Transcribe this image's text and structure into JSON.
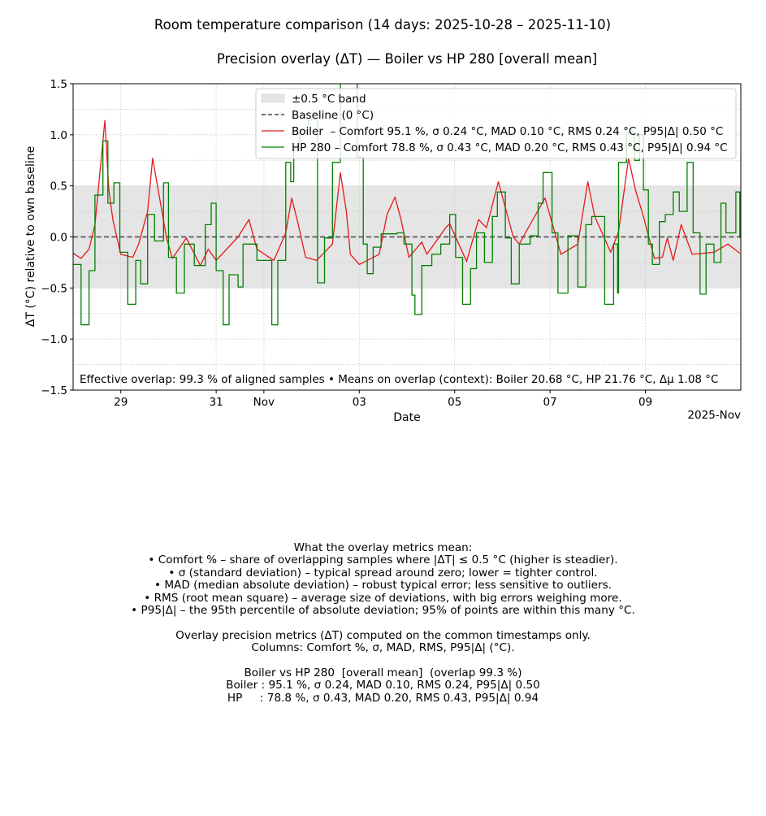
{
  "chart_data": {
    "type": "line",
    "suptitle": "Room temperature comparison (14 days: 2025-10-28 – 2025-11-10)",
    "title": "Precision overlay (ΔT) — Boiler vs HP 280  [overall mean]",
    "xlabel": "Date",
    "ylabel": "ΔT (°C) relative to own baseline",
    "xlim": [
      "2025-10-28 00:00",
      "2025-11-11 00:00"
    ],
    "ylim": [
      -1.5,
      1.5
    ],
    "yticks": [
      -1.5,
      -1.0,
      -0.5,
      0.0,
      0.5,
      1.0,
      1.5
    ],
    "ytick_labels": [
      "−1.5",
      "−1.0",
      "−0.5",
      "0.0",
      "0.5",
      "1.0",
      "1.5"
    ],
    "xticks": [
      {
        "date": "2025-10-29 00:00",
        "label": "29"
      },
      {
        "date": "2025-10-31 00:00",
        "label": "31"
      },
      {
        "date": "2025-11-01 00:00",
        "label": "Nov"
      },
      {
        "date": "2025-11-03 00:00",
        "label": "03"
      },
      {
        "date": "2025-11-05 00:00",
        "label": "05"
      },
      {
        "date": "2025-11-07 00:00",
        "label": "07"
      },
      {
        "date": "2025-11-09 00:00",
        "label": "09"
      }
    ],
    "x_offset_label": "2025-Nov",
    "grid": true,
    "legend_placement": "top-right",
    "band": {
      "low": -0.5,
      "high": 0.5,
      "label": "±0.5 °C band",
      "color": "#e5e5e5"
    },
    "baseline": {
      "value": 0,
      "label": "Baseline (0 °C)",
      "color": "#444444"
    },
    "series": [
      {
        "name": "Boiler  – Comfort 95.1 %, σ 0.24 °C, MAD 0.10 °C, RMS 0.24 °C, P95|Δ| 0.50 °C",
        "color": "#e41a1c",
        "style": "line",
        "points": [
          [
            "2025-10-28 00:00",
            -0.16
          ],
          [
            "2025-10-28 04:00",
            -0.21
          ],
          [
            "2025-10-28 08:00",
            -0.12
          ],
          [
            "2025-10-28 11:00",
            0.12
          ],
          [
            "2025-10-28 16:00",
            1.14
          ],
          [
            "2025-10-28 18:00",
            0.46
          ],
          [
            "2025-10-28 20:00",
            0.17
          ],
          [
            "2025-10-29 00:00",
            -0.17
          ],
          [
            "2025-10-29 06:00",
            -0.2
          ],
          [
            "2025-10-29 09:00",
            -0.07
          ],
          [
            "2025-10-29 13:30",
            0.25
          ],
          [
            "2025-10-29 16:00",
            0.77
          ],
          [
            "2025-10-29 20:00",
            0.33
          ],
          [
            "2025-10-29 23:00",
            -0.01
          ],
          [
            "2025-10-30 02:00",
            -0.21
          ],
          [
            "2025-10-30 09:00",
            -0.01
          ],
          [
            "2025-10-30 16:00",
            -0.28
          ],
          [
            "2025-10-30 20:00",
            -0.12
          ],
          [
            "2025-10-31 00:00",
            -0.23
          ],
          [
            "2025-10-31 11:00",
            0.0
          ],
          [
            "2025-10-31 16:30",
            0.17
          ],
          [
            "2025-10-31 20:30",
            -0.12
          ],
          [
            "2025-11-01 05:00",
            -0.23
          ],
          [
            "2025-11-01 11:00",
            0.04
          ],
          [
            "2025-11-01 14:00",
            0.38
          ],
          [
            "2025-11-01 17:00",
            0.15
          ],
          [
            "2025-11-01 21:00",
            -0.2
          ],
          [
            "2025-11-02 02:30",
            -0.23
          ],
          [
            "2025-11-02 10:30",
            -0.07
          ],
          [
            "2025-11-02 14:30",
            0.63
          ],
          [
            "2025-11-02 17:30",
            0.25
          ],
          [
            "2025-11-02 19:30",
            -0.17
          ],
          [
            "2025-11-03 00:00",
            -0.27
          ],
          [
            "2025-11-03 10:00",
            -0.17
          ],
          [
            "2025-11-03 14:00",
            0.22
          ],
          [
            "2025-11-03 18:00",
            0.39
          ],
          [
            "2025-11-03 21:00",
            0.17
          ],
          [
            "2025-11-04 01:00",
            -0.2
          ],
          [
            "2025-11-04 07:30",
            -0.05
          ],
          [
            "2025-11-04 10:00",
            -0.17
          ],
          [
            "2025-11-04 19:30",
            0.09
          ],
          [
            "2025-11-04 21:30",
            0.13
          ],
          [
            "2025-11-05 06:00",
            -0.24
          ],
          [
            "2025-11-05 12:00",
            0.17
          ],
          [
            "2025-11-05 16:00",
            0.09
          ],
          [
            "2025-11-05 22:00",
            0.54
          ],
          [
            "2025-11-06 05:30",
            0.0
          ],
          [
            "2025-11-06 08:30",
            -0.07
          ],
          [
            "2025-11-06 12:30",
            0.07
          ],
          [
            "2025-11-06 21:30",
            0.38
          ],
          [
            "2025-11-07 05:30",
            -0.17
          ],
          [
            "2025-11-07 14:00",
            -0.07
          ],
          [
            "2025-11-07 19:00",
            0.54
          ],
          [
            "2025-11-07 22:30",
            0.2
          ],
          [
            "2025-11-08 06:30",
            -0.15
          ],
          [
            "2025-11-08 10:30",
            0.05
          ],
          [
            "2025-11-08 15:30",
            0.77
          ],
          [
            "2025-11-08 19:00",
            0.46
          ],
          [
            "2025-11-08 23:00",
            0.2
          ],
          [
            "2025-11-09 04:30",
            -0.21
          ],
          [
            "2025-11-09 08:30",
            -0.2
          ],
          [
            "2025-11-09 11:00",
            -0.01
          ],
          [
            "2025-11-09 14:00",
            -0.23
          ],
          [
            "2025-11-09 18:00",
            0.12
          ],
          [
            "2025-11-09 23:30",
            -0.17
          ],
          [
            "2025-11-10 10:30",
            -0.15
          ],
          [
            "2025-11-10 17:30",
            -0.07
          ],
          [
            "2025-11-10 23:30",
            -0.16
          ]
        ]
      },
      {
        "name": "HP 280 – Comfort 78.8 %, σ 0.43 °C, MAD 0.20 °C, RMS 0.43 °C, P95|Δ| 0.94 °C",
        "color": "#008000",
        "style": "steps",
        "points": [
          [
            "2025-10-28 00:00",
            -0.27
          ],
          [
            "2025-10-28 04:00",
            -0.86
          ],
          [
            "2025-10-28 08:00",
            -0.33
          ],
          [
            "2025-10-28 11:00",
            0.41
          ],
          [
            "2025-10-28 15:00",
            0.94
          ],
          [
            "2025-10-28 17:30",
            0.33
          ],
          [
            "2025-10-28 20:30",
            0.53
          ],
          [
            "2025-10-28 23:30",
            -0.15
          ],
          [
            "2025-10-29 03:30",
            -0.66
          ],
          [
            "2025-10-29 07:30",
            -0.23
          ],
          [
            "2025-10-29 10:00",
            -0.46
          ],
          [
            "2025-10-29 13:30",
            0.22
          ],
          [
            "2025-10-29 17:00",
            -0.04
          ],
          [
            "2025-10-29 21:30",
            0.53
          ],
          [
            "2025-10-30 00:00",
            -0.2
          ],
          [
            "2025-10-30 04:00",
            -0.55
          ],
          [
            "2025-10-30 08:00",
            -0.07
          ],
          [
            "2025-10-30 13:00",
            -0.28
          ],
          [
            "2025-10-30 18:30",
            0.12
          ],
          [
            "2025-10-30 21:30",
            0.33
          ],
          [
            "2025-10-31 00:00",
            -0.33
          ],
          [
            "2025-10-31 03:30",
            -0.86
          ],
          [
            "2025-10-31 06:30",
            -0.37
          ],
          [
            "2025-10-31 11:00",
            -0.49
          ],
          [
            "2025-10-31 13:30",
            -0.07
          ],
          [
            "2025-10-31 20:30",
            -0.23
          ],
          [
            "2025-11-01 00:30",
            -0.23
          ],
          [
            "2025-11-01 04:00",
            -0.86
          ],
          [
            "2025-11-01 07:00",
            -0.23
          ],
          [
            "2025-11-01 11:00",
            0.73
          ],
          [
            "2025-11-01 13:30",
            0.54
          ],
          [
            "2025-11-01 15:00",
            0.86
          ],
          [
            "2025-11-01 18:00",
            1.04
          ],
          [
            "2025-11-01 22:30",
            1.15
          ],
          [
            "2025-11-02 03:00",
            -0.45
          ],
          [
            "2025-11-02 06:30",
            -0.01
          ],
          [
            "2025-11-02 10:30",
            0.73
          ],
          [
            "2025-11-02 14:30",
            1.6
          ],
          [
            "2025-11-02 23:00",
            0.78
          ],
          [
            "2025-11-03 02:00",
            -0.07
          ],
          [
            "2025-11-03 04:00",
            -0.36
          ],
          [
            "2025-11-03 07:00",
            -0.1
          ],
          [
            "2025-11-03 11:00",
            0.03
          ],
          [
            "2025-11-03 19:00",
            0.04
          ],
          [
            "2025-11-03 22:30",
            -0.07
          ],
          [
            "2025-11-04 02:30",
            -0.57
          ],
          [
            "2025-11-04 04:00",
            -0.76
          ],
          [
            "2025-11-04 07:30",
            -0.28
          ],
          [
            "2025-11-04 12:30",
            -0.17
          ],
          [
            "2025-11-04 17:00",
            -0.07
          ],
          [
            "2025-11-04 21:30",
            0.22
          ],
          [
            "2025-11-05 00:30",
            -0.2
          ],
          [
            "2025-11-05 04:00",
            -0.66
          ],
          [
            "2025-11-05 08:00",
            -0.31
          ],
          [
            "2025-11-05 11:00",
            0.04
          ],
          [
            "2025-11-05 15:00",
            -0.25
          ],
          [
            "2025-11-05 19:00",
            0.2
          ],
          [
            "2025-11-05 21:30",
            0.44
          ],
          [
            "2025-11-06 01:30",
            -0.01
          ],
          [
            "2025-11-06 04:30",
            -0.46
          ],
          [
            "2025-11-06 08:30",
            -0.07
          ],
          [
            "2025-11-06 14:00",
            0.01
          ],
          [
            "2025-11-06 18:00",
            0.33
          ],
          [
            "2025-11-06 20:30",
            0.63
          ],
          [
            "2025-11-07 01:00",
            0.04
          ],
          [
            "2025-11-07 04:00",
            -0.55
          ],
          [
            "2025-11-07 09:00",
            0.01
          ],
          [
            "2025-11-07 14:00",
            -0.49
          ],
          [
            "2025-11-07 18:00",
            0.12
          ],
          [
            "2025-11-07 21:00",
            0.2
          ],
          [
            "2025-11-08 03:30",
            -0.66
          ],
          [
            "2025-11-08 08:00",
            -0.07
          ],
          [
            "2025-11-08 10:00",
            -0.55
          ],
          [
            "2025-11-08 10:30",
            0.73
          ],
          [
            "2025-11-08 14:30",
            1.02
          ],
          [
            "2025-11-08 18:30",
            0.75
          ],
          [
            "2025-11-08 21:00",
            1.0
          ],
          [
            "2025-11-08 23:00",
            0.46
          ],
          [
            "2025-11-09 01:30",
            -0.07
          ],
          [
            "2025-11-09 03:30",
            -0.27
          ],
          [
            "2025-11-09 07:00",
            0.15
          ],
          [
            "2025-11-09 10:00",
            0.22
          ],
          [
            "2025-11-09 14:00",
            0.44
          ],
          [
            "2025-11-09 17:00",
            0.25
          ],
          [
            "2025-11-09 21:00",
            0.73
          ],
          [
            "2025-11-10 00:00",
            0.04
          ],
          [
            "2025-11-10 03:30",
            -0.56
          ],
          [
            "2025-11-10 06:30",
            -0.07
          ],
          [
            "2025-11-10 10:30",
            -0.25
          ],
          [
            "2025-11-10 14:00",
            0.33
          ],
          [
            "2025-11-10 16:30",
            0.04
          ],
          [
            "2025-11-10 21:30",
            0.44
          ],
          [
            "2025-11-10 23:30",
            -0.01
          ]
        ]
      }
    ],
    "annotation": "Effective overlap: 99.3 % of aligned samples • Means on overlap (context): Boiler 20.68 °C, HP 21.76 °C, Δμ 1.08 °C"
  },
  "notes": {
    "lines": [
      "What the overlay metrics mean:",
      "• Comfort % – share of overlapping samples where |ΔT| ≤ 0.5 °C (higher is steadier).",
      "• σ (standard deviation) – typical spread around zero; lower = tighter control.",
      "• MAD (median absolute deviation) – robust typical error; less sensitive to outliers.",
      "• RMS (root mean square) – average size of deviations, with big errors weighing more.",
      "• P95|Δ| – the 95th percentile of absolute deviation; 95% of points are within this many °C.",
      "",
      "Overlay precision metrics (ΔT) computed on the common timestamps only.",
      "Columns: Comfort %, σ, MAD, RMS, P95|Δ| (°C).",
      "",
      "Boiler vs HP 280  [overall mean]  (overlap 99.3 %)",
      "Boiler : 95.1 %, σ 0.24, MAD 0.10, RMS 0.24, P95|Δ| 0.50",
      "HP     : 78.8 %, σ 0.43, MAD 0.20, RMS 0.43, P95|Δ| 0.94"
    ]
  }
}
